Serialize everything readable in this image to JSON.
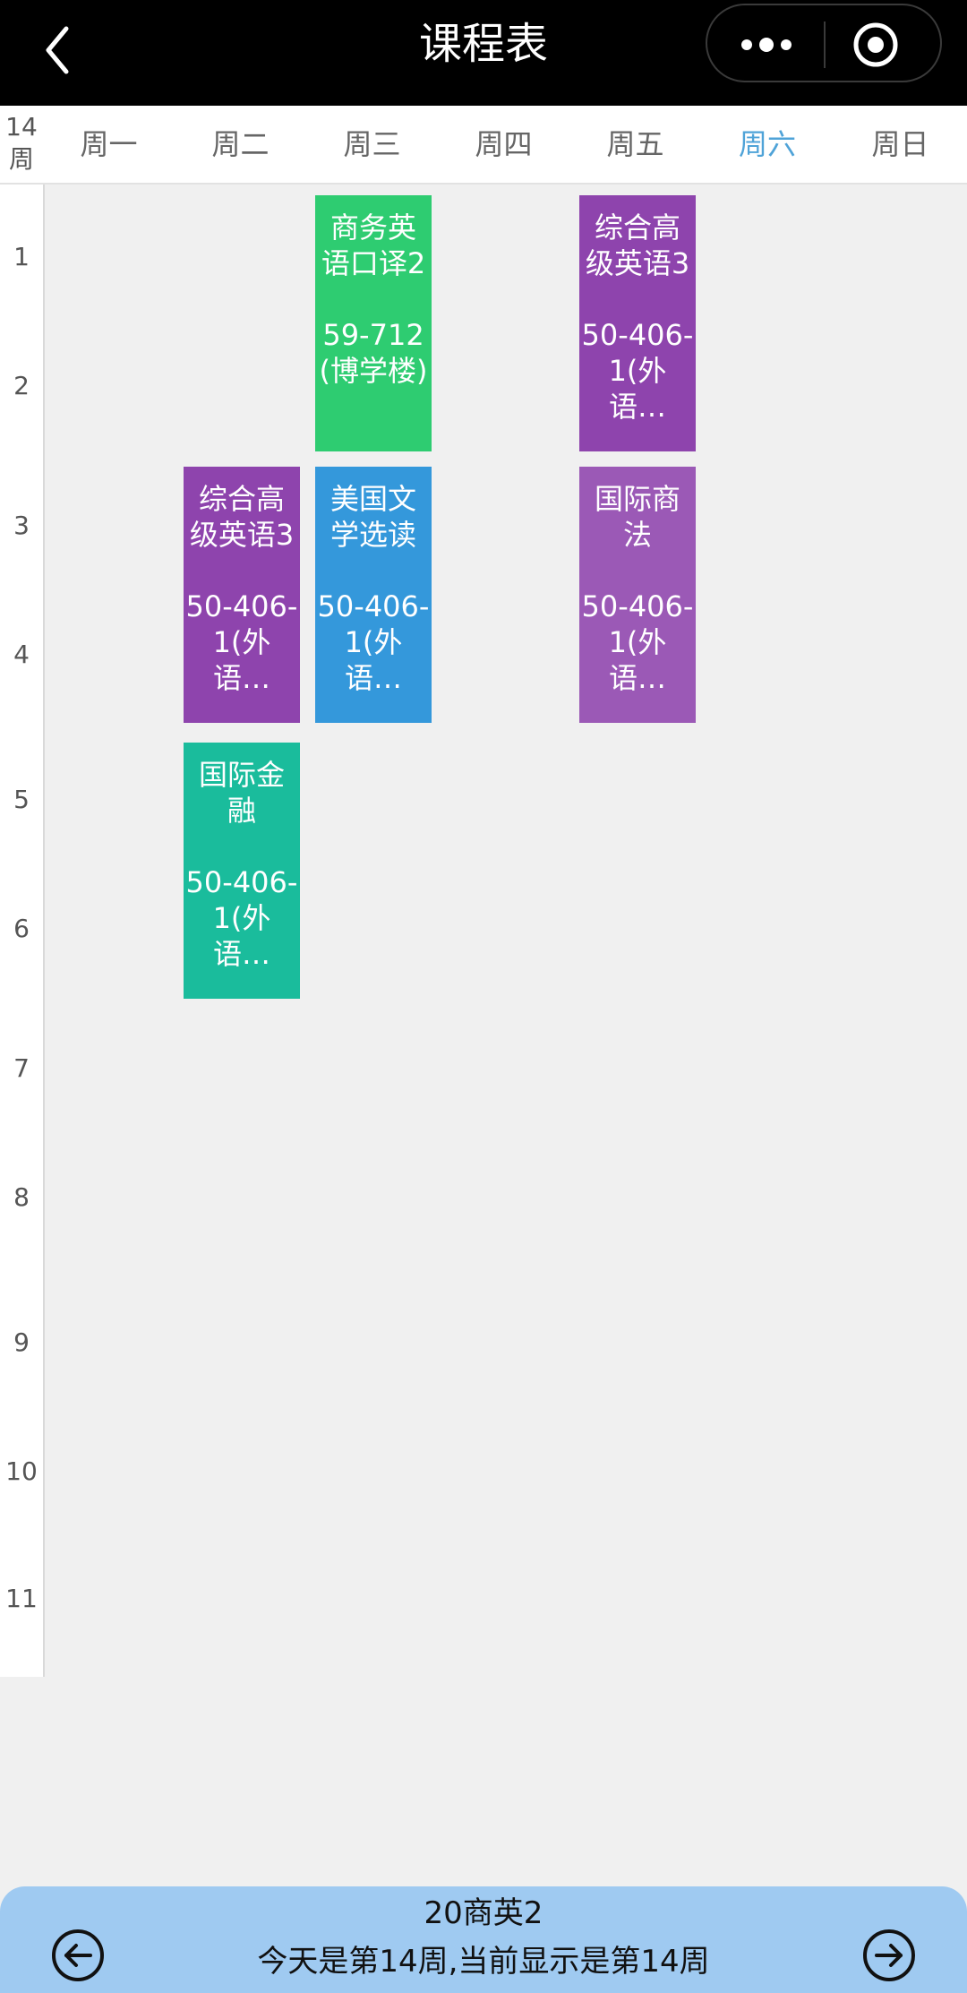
{
  "titlebar": {
    "title": "课程表",
    "back_icon": "chevron-left-icon",
    "more_icon": "more-dots-icon",
    "target_icon": "target-icon"
  },
  "header": {
    "week_number": "14",
    "week_unit": "周",
    "days": [
      "周一",
      "周二",
      "周三",
      "周四",
      "周五",
      "周六",
      "周日"
    ],
    "active_day_index": 5,
    "active_color": "#4fa3d8"
  },
  "periods": [
    "1",
    "2",
    "3",
    "4",
    "5",
    "6",
    "7",
    "8",
    "9",
    "10",
    "11"
  ],
  "courses": [
    {
      "name": "商务英语口译2",
      "room": "59-712(博学楼)",
      "day": "周三",
      "periods": "1-2",
      "color": "#2ecc71"
    },
    {
      "name": "综合高级英语3",
      "room": "50-406-1(外语…",
      "day": "周五",
      "periods": "1-2",
      "color": "#8e44ad"
    },
    {
      "name": "综合高级英语3",
      "room": "50-406-1(外语…",
      "day": "周二",
      "periods": "3-4",
      "color": "#8e44ad"
    },
    {
      "name": "美国文学选读",
      "room": "50-406-1(外语…",
      "day": "周三",
      "periods": "3-4",
      "color": "#3498db"
    },
    {
      "name": "国际商法",
      "room": "50-406-1(外语…",
      "day": "周五",
      "periods": "3-4",
      "color": "#9b59b6"
    },
    {
      "name": "国际金融",
      "room": "50-406-1(外语…",
      "day": "周二",
      "periods": "5-6",
      "color": "#1abc9c"
    }
  ],
  "bottom": {
    "class_name": "20商英2",
    "week_info": "今天是第14周,当前显示是第14周",
    "prev_icon": "arrow-left-circle-icon",
    "next_icon": "arrow-right-circle-icon"
  }
}
